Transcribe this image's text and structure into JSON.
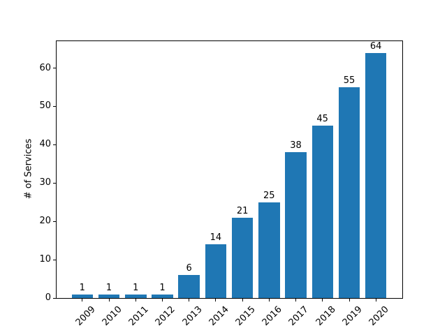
{
  "chart_data": {
    "type": "bar",
    "title": "",
    "xlabel": "",
    "ylabel": "# of Services",
    "categories": [
      "2009",
      "2010",
      "2011",
      "2012",
      "2013",
      "2014",
      "2015",
      "2016",
      "2017",
      "2018",
      "2019",
      "2020"
    ],
    "values": [
      1,
      1,
      1,
      1,
      6,
      14,
      21,
      25,
      38,
      45,
      55,
      64
    ],
    "value_labels": [
      "1",
      "1",
      "1",
      "1",
      "6",
      "14",
      "21",
      "25",
      "38",
      "45",
      "55",
      "64"
    ],
    "yticks": [
      0,
      10,
      20,
      30,
      40,
      50,
      60
    ],
    "ytick_labels": [
      "0",
      "10",
      "20",
      "30",
      "40",
      "50",
      "60"
    ],
    "ylim": [
      0,
      67.2
    ],
    "bar_color": "#1f77b4",
    "axis_color": "#000000",
    "background_color": "#ffffff",
    "grid": "off",
    "legend": "none",
    "xtick_rotation_deg": 45
  }
}
